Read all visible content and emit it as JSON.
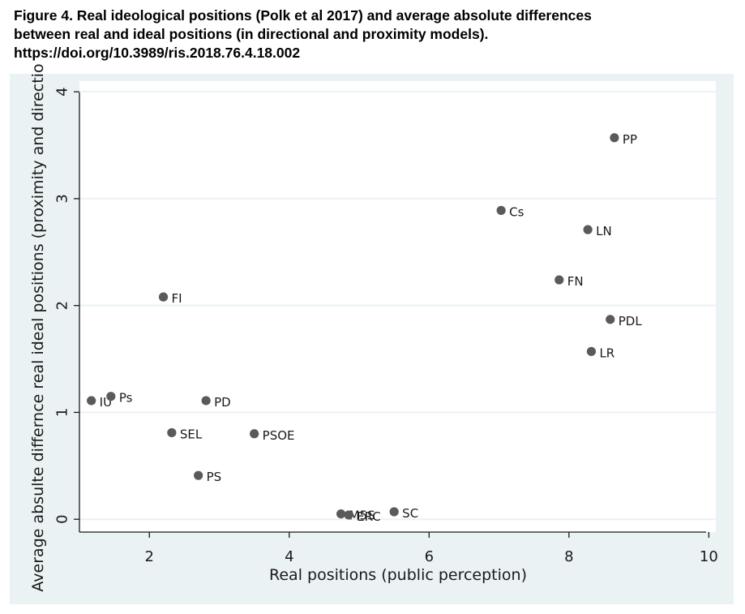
{
  "caption": {
    "line1": "Figure 4. Real ideological positions (Polk et al 2017) and average absolute differences",
    "line2": "between real and ideal positions (in directional and proximity models).",
    "line3": "https://doi.org/10.3989/ris.2018.76.4.18.002"
  },
  "colors": {
    "panel_background": "#eaf2f3",
    "plot_background": "#ffffff",
    "marker": "#5a5a5a",
    "gridline": "#eaf2f3",
    "axis": "#1a1a1a"
  },
  "chart_data": {
    "type": "scatter",
    "xlabel": "Real positions (public perception)",
    "ylabel": "Average absulte differnce real ideal positions (proximity and directio",
    "xlim": [
      1.0,
      10.1
    ],
    "ylim": [
      -0.12,
      4.1
    ],
    "xticks": [
      2,
      4,
      6,
      8,
      10
    ],
    "yticks": [
      0,
      1,
      2,
      3,
      4
    ],
    "grid": "horizontal",
    "points": [
      {
        "label": "PP",
        "x": 8.65,
        "y": 3.57
      },
      {
        "label": "Cs",
        "x": 7.03,
        "y": 2.89
      },
      {
        "label": "LN",
        "x": 8.27,
        "y": 2.71
      },
      {
        "label": "FN",
        "x": 7.86,
        "y": 2.24
      },
      {
        "label": "FI",
        "x": 2.2,
        "y": 2.08
      },
      {
        "label": "PDL",
        "x": 8.59,
        "y": 1.87
      },
      {
        "label": "LR",
        "x": 8.32,
        "y": 1.57
      },
      {
        "label": "IU",
        "x": 1.17,
        "y": 1.11
      },
      {
        "label": "Ps",
        "x": 1.45,
        "y": 1.15
      },
      {
        "label": "PD",
        "x": 2.81,
        "y": 1.11
      },
      {
        "label": "SEL",
        "x": 2.32,
        "y": 0.81
      },
      {
        "label": "PSOE",
        "x": 3.5,
        "y": 0.8
      },
      {
        "label": "PS",
        "x": 2.7,
        "y": 0.41
      },
      {
        "label": "M5S",
        "x": 4.74,
        "y": 0.05
      },
      {
        "label": "ERC",
        "x": 4.85,
        "y": 0.04
      },
      {
        "label": "SC",
        "x": 5.5,
        "y": 0.07
      }
    ]
  }
}
